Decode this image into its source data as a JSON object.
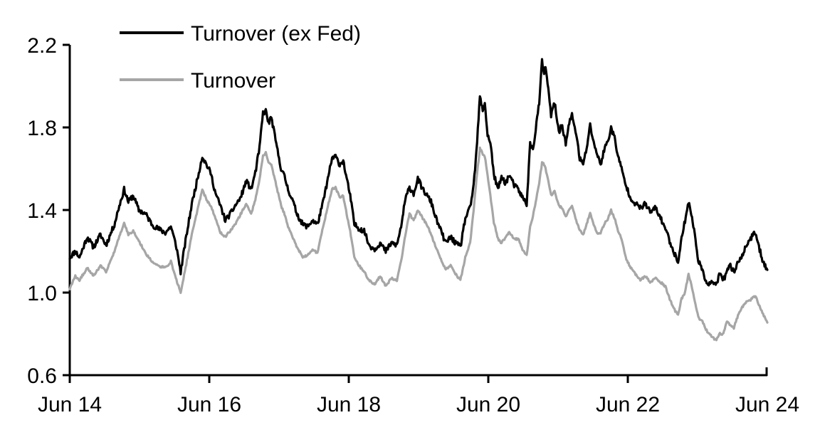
{
  "chart_data": {
    "type": "line",
    "title": "",
    "xlabel": "",
    "ylabel": "",
    "grid": false,
    "legend_position": "top-left-inside",
    "colors": {
      "series_black": "#000000",
      "series_gray": "#a6a6a6",
      "axis": "#000000",
      "background": "#ffffff"
    },
    "x_axis": {
      "tick_labels": [
        "Jun 14",
        "Jun 16",
        "Jun 18",
        "Jun 20",
        "Jun 22",
        "Jun 24"
      ],
      "tick_values_years": [
        0,
        2,
        4,
        6,
        8,
        10
      ],
      "range_years": [
        0,
        10
      ]
    },
    "y_axis": {
      "tick_labels": [
        "0.6",
        "1.0",
        "1.4",
        "1.8",
        "2.2"
      ],
      "tick_values": [
        0.6,
        1.0,
        1.4,
        1.8,
        2.2
      ],
      "range": [
        0.6,
        2.2
      ]
    },
    "legend": [
      {
        "label": "Turnover (ex Fed)",
        "color": "#000000"
      },
      {
        "label": "Turnover",
        "color": "#a6a6a6"
      }
    ],
    "x_years": [
      0.0,
      0.08,
      0.14,
      0.25,
      0.34,
      0.44,
      0.52,
      0.64,
      0.71,
      0.78,
      0.84,
      0.91,
      0.99,
      1.09,
      1.18,
      1.26,
      1.37,
      1.45,
      1.53,
      1.59,
      1.66,
      1.75,
      1.83,
      1.9,
      1.96,
      2.02,
      2.09,
      2.16,
      2.23,
      2.3,
      2.37,
      2.45,
      2.53,
      2.6,
      2.66,
      2.72,
      2.77,
      2.81,
      2.85,
      2.89,
      2.96,
      3.03,
      3.08,
      3.13,
      3.19,
      3.26,
      3.34,
      3.41,
      3.48,
      3.55,
      3.62,
      3.7,
      3.76,
      3.81,
      3.87,
      3.92,
      3.97,
      4.02,
      4.08,
      4.15,
      4.22,
      4.29,
      4.37,
      4.45,
      4.53,
      4.61,
      4.69,
      4.75,
      4.81,
      4.87,
      4.93,
      4.99,
      5.06,
      5.12,
      5.18,
      5.25,
      5.32,
      5.39,
      5.46,
      5.53,
      5.6,
      5.67,
      5.74,
      5.79,
      5.83,
      5.88,
      5.92,
      5.95,
      5.99,
      6.03,
      6.08,
      6.14,
      6.19,
      6.25,
      6.3,
      6.37,
      6.43,
      6.49,
      6.55,
      6.6,
      6.64,
      6.69,
      6.73,
      6.77,
      6.8,
      6.82,
      6.86,
      6.9,
      6.95,
      7.01,
      7.06,
      7.11,
      7.16,
      7.2,
      7.26,
      7.31,
      7.36,
      7.41,
      7.46,
      7.51,
      7.56,
      7.61,
      7.66,
      7.72,
      7.76,
      7.81,
      7.86,
      7.91,
      7.97,
      8.04,
      8.11,
      8.18,
      8.25,
      8.32,
      8.4,
      8.47,
      8.54,
      8.61,
      8.68,
      8.72,
      8.77,
      8.82,
      8.87,
      8.91,
      8.96,
      9.01,
      9.07,
      9.12,
      9.17,
      9.22,
      9.27,
      9.32,
      9.37,
      9.42,
      9.47,
      9.52,
      9.57,
      9.62,
      9.68,
      9.73,
      9.78,
      9.83,
      9.88,
      9.93,
      10.0
    ],
    "series": [
      {
        "name": "Turnover (ex Fed)",
        "color": "#000000",
        "values": [
          1.17,
          1.2,
          1.17,
          1.27,
          1.22,
          1.28,
          1.23,
          1.33,
          1.42,
          1.5,
          1.44,
          1.47,
          1.4,
          1.38,
          1.33,
          1.31,
          1.29,
          1.32,
          1.22,
          1.1,
          1.25,
          1.43,
          1.55,
          1.66,
          1.62,
          1.58,
          1.48,
          1.42,
          1.35,
          1.38,
          1.42,
          1.46,
          1.54,
          1.5,
          1.58,
          1.7,
          1.87,
          1.88,
          1.82,
          1.85,
          1.72,
          1.6,
          1.56,
          1.5,
          1.45,
          1.38,
          1.33,
          1.32,
          1.35,
          1.33,
          1.42,
          1.55,
          1.65,
          1.66,
          1.62,
          1.64,
          1.55,
          1.47,
          1.33,
          1.31,
          1.3,
          1.23,
          1.21,
          1.24,
          1.2,
          1.24,
          1.23,
          1.32,
          1.45,
          1.51,
          1.48,
          1.55,
          1.5,
          1.47,
          1.44,
          1.36,
          1.3,
          1.24,
          1.27,
          1.24,
          1.22,
          1.36,
          1.41,
          1.52,
          1.68,
          1.95,
          1.88,
          1.92,
          1.76,
          1.73,
          1.57,
          1.5,
          1.56,
          1.53,
          1.57,
          1.52,
          1.5,
          1.46,
          1.43,
          1.72,
          1.69,
          1.82,
          1.92,
          2.12,
          2.06,
          2.1,
          1.98,
          1.86,
          1.92,
          1.78,
          1.81,
          1.72,
          1.82,
          1.86,
          1.77,
          1.65,
          1.62,
          1.7,
          1.81,
          1.73,
          1.67,
          1.62,
          1.69,
          1.74,
          1.8,
          1.75,
          1.66,
          1.6,
          1.52,
          1.46,
          1.43,
          1.41,
          1.43,
          1.39,
          1.41,
          1.36,
          1.31,
          1.24,
          1.18,
          1.15,
          1.26,
          1.35,
          1.44,
          1.38,
          1.28,
          1.16,
          1.1,
          1.06,
          1.04,
          1.05,
          1.04,
          1.09,
          1.06,
          1.1,
          1.13,
          1.1,
          1.14,
          1.17,
          1.21,
          1.25,
          1.27,
          1.29,
          1.22,
          1.16,
          1.11
        ]
      },
      {
        "name": "Turnover",
        "color": "#a6a6a6",
        "values": [
          1.02,
          1.08,
          1.06,
          1.12,
          1.08,
          1.13,
          1.1,
          1.2,
          1.27,
          1.34,
          1.28,
          1.3,
          1.25,
          1.19,
          1.15,
          1.13,
          1.12,
          1.15,
          1.06,
          1.0,
          1.12,
          1.28,
          1.4,
          1.5,
          1.45,
          1.42,
          1.36,
          1.29,
          1.27,
          1.3,
          1.33,
          1.38,
          1.43,
          1.38,
          1.45,
          1.55,
          1.66,
          1.68,
          1.63,
          1.62,
          1.52,
          1.42,
          1.38,
          1.32,
          1.27,
          1.22,
          1.17,
          1.18,
          1.21,
          1.19,
          1.3,
          1.42,
          1.5,
          1.51,
          1.46,
          1.47,
          1.38,
          1.3,
          1.17,
          1.13,
          1.1,
          1.06,
          1.04,
          1.08,
          1.03,
          1.07,
          1.06,
          1.15,
          1.28,
          1.38,
          1.35,
          1.4,
          1.36,
          1.33,
          1.28,
          1.22,
          1.16,
          1.11,
          1.13,
          1.09,
          1.06,
          1.17,
          1.24,
          1.4,
          1.55,
          1.7,
          1.67,
          1.66,
          1.57,
          1.47,
          1.34,
          1.26,
          1.24,
          1.27,
          1.29,
          1.26,
          1.26,
          1.21,
          1.18,
          1.32,
          1.37,
          1.46,
          1.53,
          1.63,
          1.62,
          1.6,
          1.54,
          1.47,
          1.49,
          1.42,
          1.41,
          1.37,
          1.4,
          1.42,
          1.35,
          1.3,
          1.28,
          1.33,
          1.39,
          1.33,
          1.29,
          1.29,
          1.33,
          1.36,
          1.4,
          1.36,
          1.3,
          1.26,
          1.17,
          1.12,
          1.09,
          1.06,
          1.08,
          1.05,
          1.07,
          1.05,
          1.03,
          0.96,
          0.91,
          0.89,
          0.97,
          1.0,
          1.09,
          1.04,
          0.96,
          0.88,
          0.86,
          0.82,
          0.8,
          0.78,
          0.77,
          0.8,
          0.8,
          0.86,
          0.84,
          0.83,
          0.88,
          0.92,
          0.95,
          0.96,
          0.97,
          0.985,
          0.94,
          0.9,
          0.855
        ]
      }
    ]
  },
  "render": {
    "noise_amplitude": [
      0.013,
      0.005
    ],
    "noise_seed": 11,
    "sample_step_years": 0.01
  }
}
